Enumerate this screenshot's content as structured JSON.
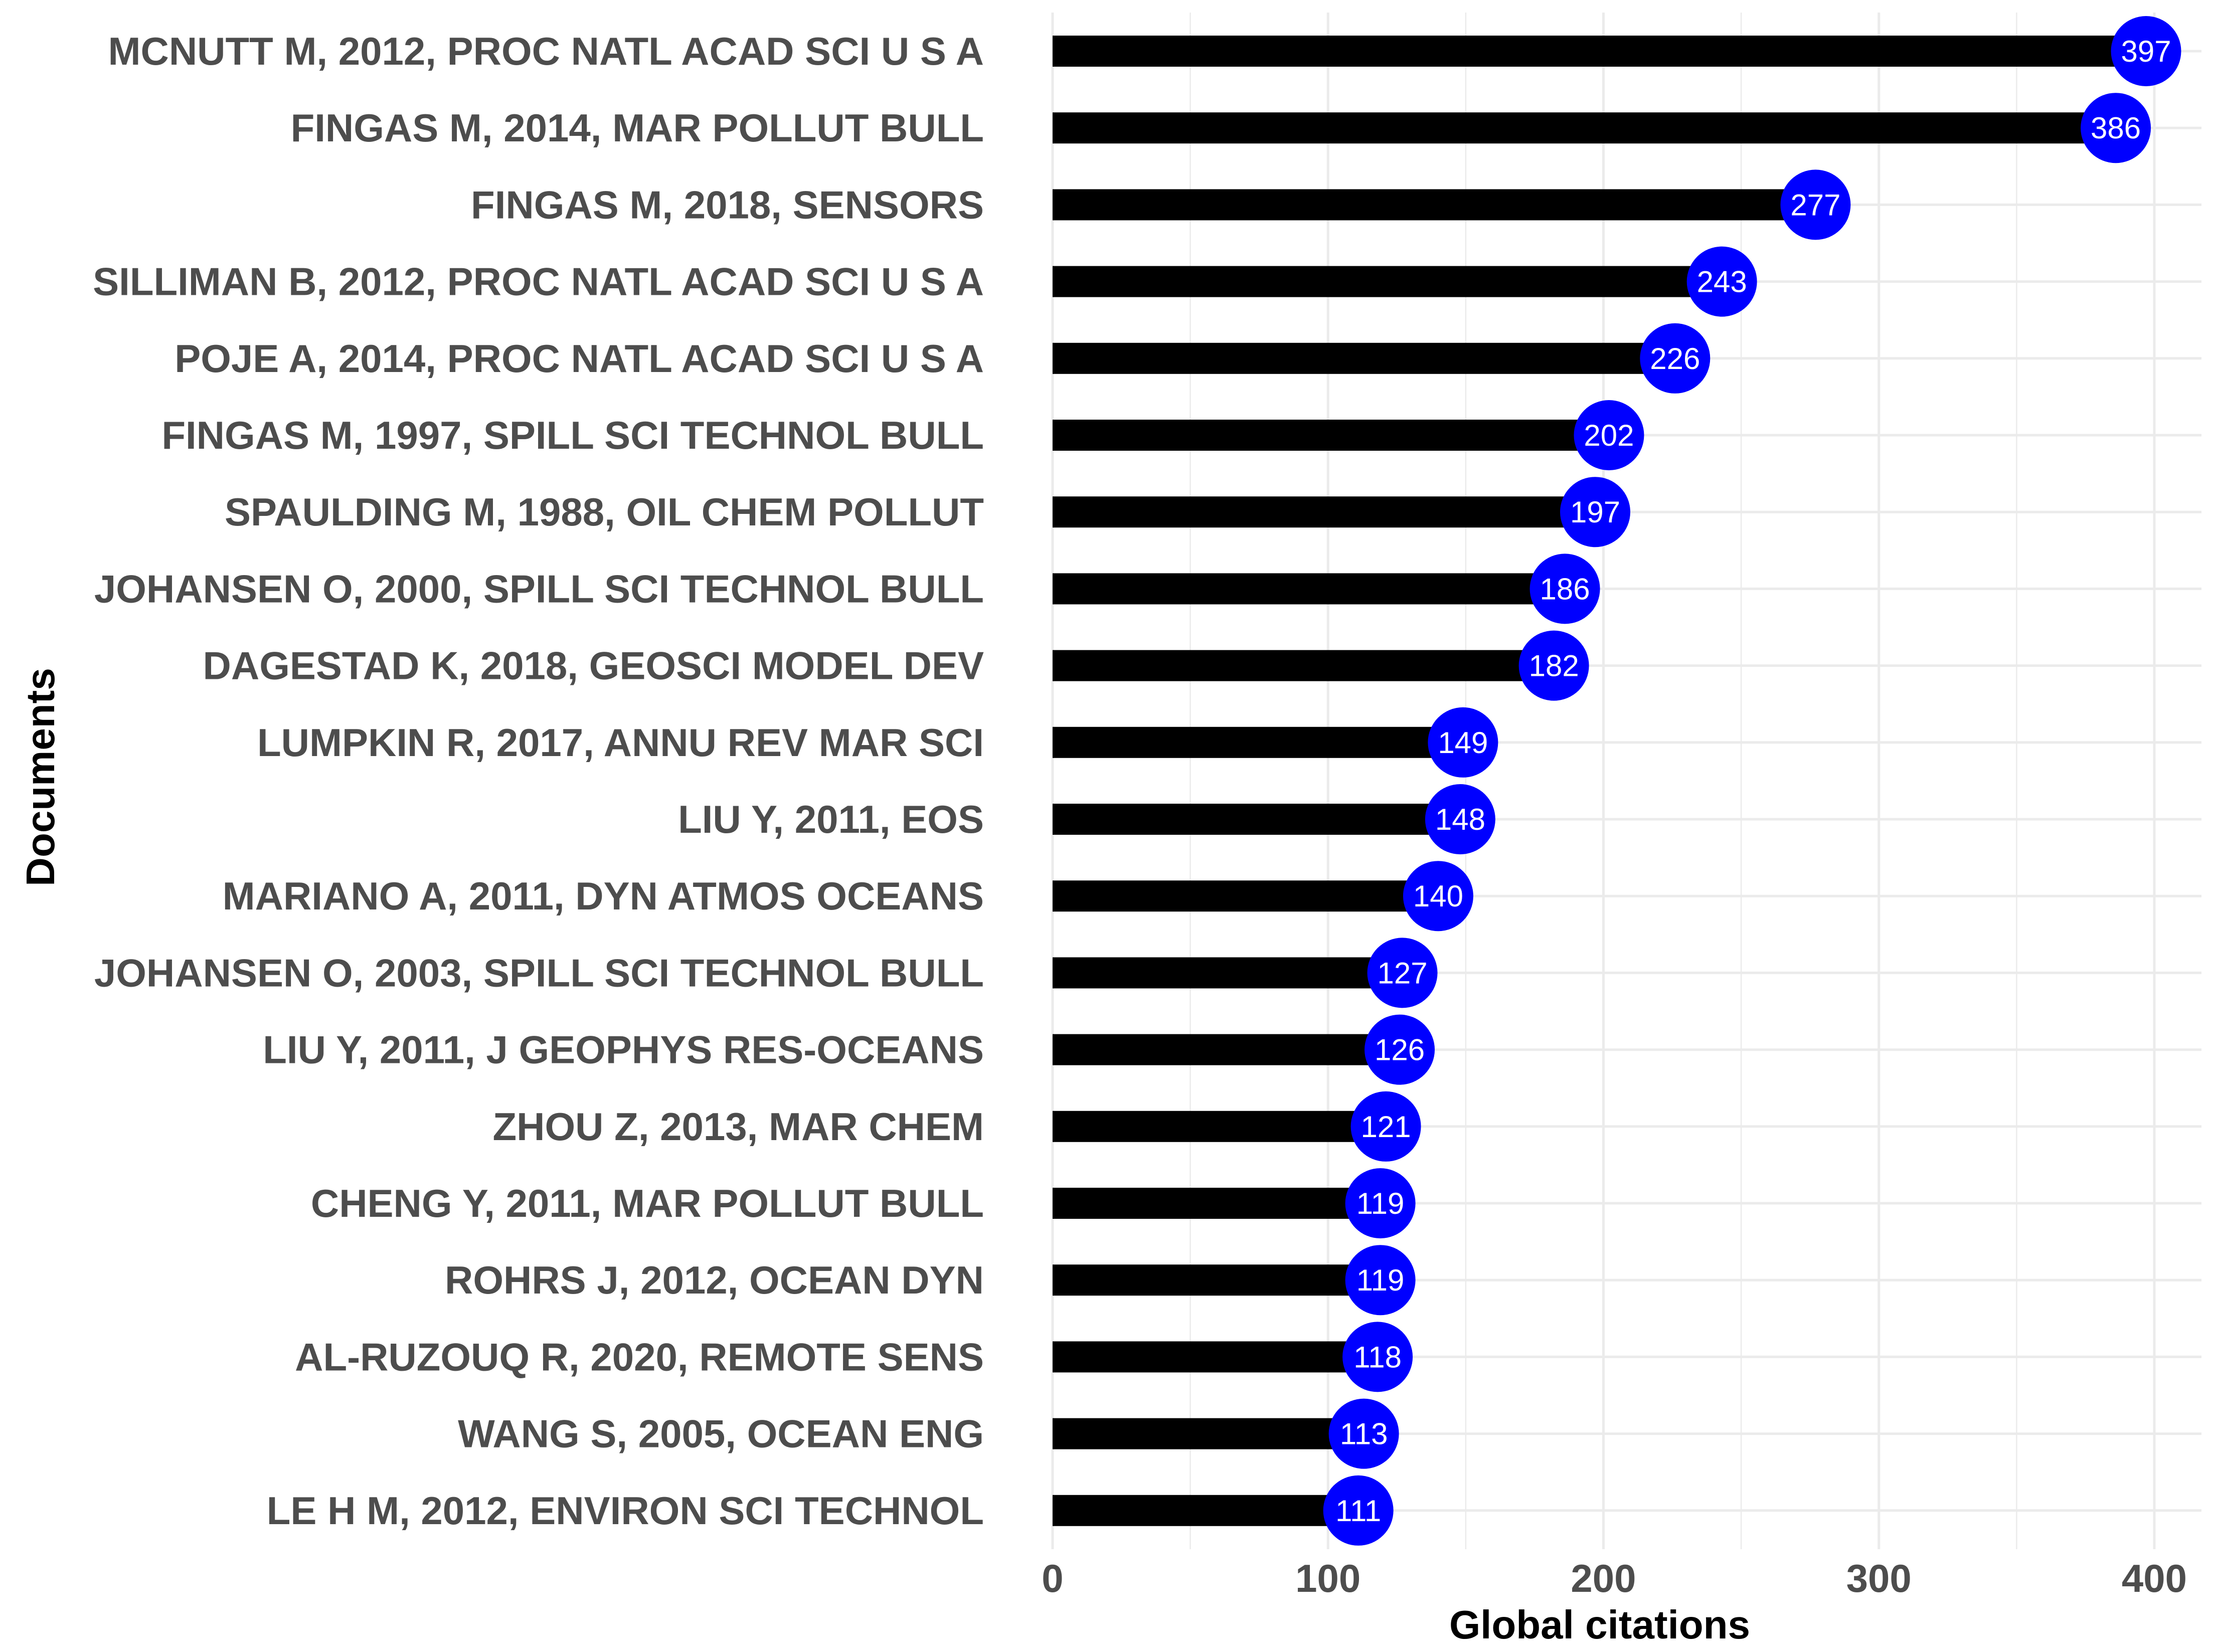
{
  "chart_data": {
    "type": "bar",
    "orientation": "horizontal",
    "xlabel": "Global citations",
    "ylabel": "Documents",
    "xlim": [
      0,
      415
    ],
    "xticks": [
      0,
      100,
      200,
      300,
      400
    ],
    "grid": true,
    "categories": [
      "MCNUTT M, 2012, PROC NATL ACAD SCI U S A",
      "FINGAS M, 2014, MAR POLLUT BULL",
      "FINGAS M, 2018, SENSORS",
      "SILLIMAN B, 2012, PROC NATL ACAD SCI U S A",
      "POJE A, 2014, PROC NATL ACAD SCI U S A",
      "FINGAS M, 1997, SPILL SCI TECHNOL BULL",
      "SPAULDING M, 1988, OIL CHEM POLLUT",
      "JOHANSEN O, 2000, SPILL SCI TECHNOL BULL",
      "DAGESTAD K, 2018, GEOSCI MODEL DEV",
      "LUMPKIN R, 2017, ANNU REV MAR SCI",
      "LIU Y, 2011, EOS",
      "MARIANO A, 2011, DYN ATMOS OCEANS",
      "JOHANSEN O, 2003, SPILL SCI TECHNOL BULL",
      "LIU Y, 2011, J GEOPHYS RES-OCEANS",
      "ZHOU Z, 2013, MAR CHEM",
      "CHENG Y, 2011, MAR POLLUT BULL",
      "ROHRS J, 2012, OCEAN DYN",
      "AL-RUZOUQ R, 2020, REMOTE SENS",
      "WANG S, 2005, OCEAN ENG",
      "LE H M, 2012, ENVIRON SCI TECHNOL"
    ],
    "values": [
      397,
      386,
      277,
      243,
      226,
      202,
      197,
      186,
      182,
      149,
      148,
      140,
      127,
      126,
      121,
      119,
      119,
      118,
      113,
      111
    ],
    "colors": {
      "bar": "#000000",
      "marker": "#0000ff",
      "marker_text": "#ffffff",
      "grid": "#ebebeb",
      "label": "#4d4d4d"
    }
  }
}
